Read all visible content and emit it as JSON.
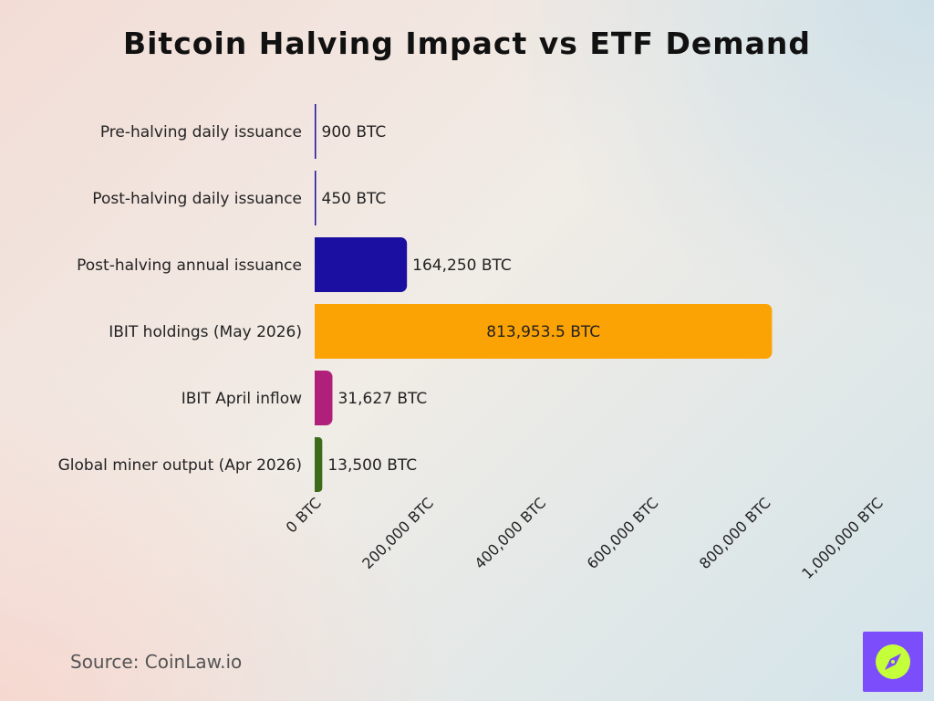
{
  "chart_data": {
    "type": "bar",
    "orientation": "horizontal",
    "title": "Bitcoin Halving Impact vs ETF Demand",
    "categories": [
      "Pre-halving daily issuance",
      "Post-halving daily issuance",
      "Post-halving annual issuance",
      "IBIT holdings (May 2026)",
      "IBIT April inflow",
      "Global miner output (Apr 2026)"
    ],
    "values": [
      900,
      450,
      164250,
      813953.5,
      31627,
      13500
    ],
    "value_labels": [
      "900 BTC",
      "450 BTC",
      "164,250 BTC",
      "813,953.5 BTC",
      "31,627 BTC",
      "13,500 BTC"
    ],
    "colors": [
      "#1a0fa0",
      "#1a0fa0",
      "#1a0fa0",
      "#fba204",
      "#b0207a",
      "#3c6b1a"
    ],
    "xlim": [
      0,
      1000000
    ],
    "x_ticks": [
      0,
      200000,
      400000,
      600000,
      800000,
      1000000
    ],
    "x_tick_labels": [
      "0 BTC",
      "200,000 BTC",
      "400,000 BTC",
      "600,000 BTC",
      "800,000 BTC",
      "1,000,000 BTC"
    ],
    "grid": false,
    "legend": "none"
  },
  "source": "Source: CoinLaw.io",
  "logo": {
    "icon": "compass-icon",
    "background": "#7b4dfb",
    "accent": "#c5ff3a"
  }
}
